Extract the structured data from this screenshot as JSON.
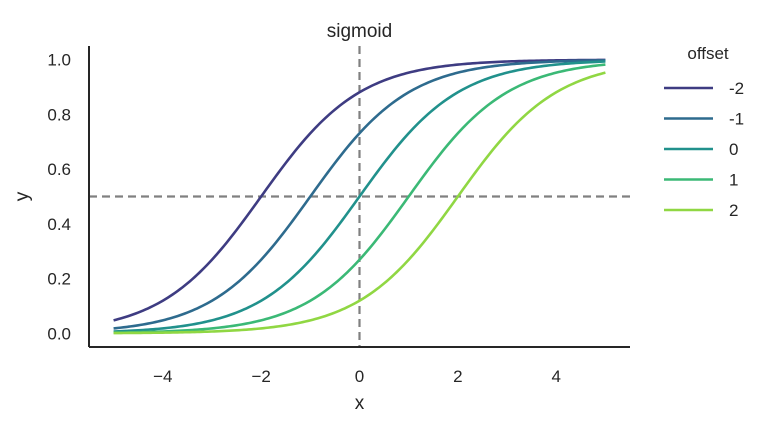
{
  "chart_data": {
    "type": "line",
    "title": "sigmoid",
    "xlabel": "x",
    "ylabel": "y",
    "function": "y = 1 / (1 + exp(-(x - offset)))",
    "x_range": [
      -5,
      5
    ],
    "xlim": [
      -5.5,
      5.5
    ],
    "ylim": [
      -0.05,
      1.05
    ],
    "xticks": [
      -4,
      -2,
      0,
      2,
      4
    ],
    "xtick_labels": [
      "−4",
      "−2",
      "0",
      "2",
      "4"
    ],
    "yticks": [
      0.0,
      0.2,
      0.4,
      0.6,
      0.8,
      1.0
    ],
    "ytick_labels": [
      "0.0",
      "0.2",
      "0.4",
      "0.6",
      "0.8",
      "1.0"
    ],
    "grid": false,
    "legend": {
      "title": "offset",
      "placement": "outside-right"
    },
    "reference_lines": [
      {
        "orientation": "horizontal",
        "value": 0.5,
        "style": "dashed",
        "color": "#808080"
      },
      {
        "orientation": "vertical",
        "value": 0,
        "style": "dashed",
        "color": "#808080"
      }
    ],
    "series": [
      {
        "name": "-2",
        "offset": -2,
        "color": "#3e3c82",
        "x": [
          -5,
          -4,
          -3,
          -2,
          -1,
          0,
          1,
          2,
          3,
          4,
          5
        ],
        "y": [
          0.047,
          0.119,
          0.269,
          0.5,
          0.731,
          0.881,
          0.953,
          0.982,
          0.993,
          0.998,
          0.999
        ]
      },
      {
        "name": "-1",
        "offset": -1,
        "color": "#2e6b8e",
        "x": [
          -5,
          -4,
          -3,
          -2,
          -1,
          0,
          1,
          2,
          3,
          4,
          5
        ],
        "y": [
          0.018,
          0.047,
          0.119,
          0.269,
          0.5,
          0.731,
          0.881,
          0.953,
          0.982,
          0.993,
          0.998
        ]
      },
      {
        "name": "0",
        "offset": 0,
        "color": "#21918c",
        "x": [
          -5,
          -4,
          -3,
          -2,
          -1,
          0,
          1,
          2,
          3,
          4,
          5
        ],
        "y": [
          0.007,
          0.018,
          0.047,
          0.119,
          0.269,
          0.5,
          0.731,
          0.881,
          0.953,
          0.982,
          0.993
        ]
      },
      {
        "name": "1",
        "offset": 1,
        "color": "#3bb976",
        "x": [
          -5,
          -4,
          -3,
          -2,
          -1,
          0,
          1,
          2,
          3,
          4,
          5
        ],
        "y": [
          0.002,
          0.007,
          0.018,
          0.047,
          0.119,
          0.269,
          0.5,
          0.731,
          0.881,
          0.953,
          0.982
        ]
      },
      {
        "name": "2",
        "offset": 2,
        "color": "#90d743",
        "x": [
          -5,
          -4,
          -3,
          -2,
          -1,
          0,
          1,
          2,
          3,
          4,
          5
        ],
        "y": [
          0.001,
          0.002,
          0.007,
          0.018,
          0.047,
          0.119,
          0.269,
          0.5,
          0.731,
          0.881,
          0.953
        ]
      }
    ]
  }
}
